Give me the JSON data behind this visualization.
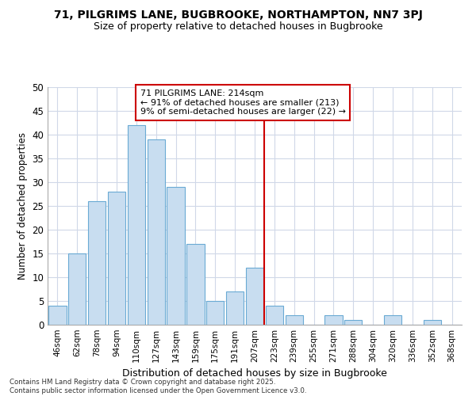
{
  "title1": "71, PILGRIMS LANE, BUGBROOKE, NORTHAMPTON, NN7 3PJ",
  "title2": "Size of property relative to detached houses in Bugbrooke",
  "xlabel": "Distribution of detached houses by size in Bugbrooke",
  "ylabel": "Number of detached properties",
  "categories": [
    "46sqm",
    "62sqm",
    "78sqm",
    "94sqm",
    "110sqm",
    "127sqm",
    "143sqm",
    "159sqm",
    "175sqm",
    "191sqm",
    "207sqm",
    "223sqm",
    "239sqm",
    "255sqm",
    "271sqm",
    "288sqm",
    "304sqm",
    "320sqm",
    "336sqm",
    "352sqm",
    "368sqm"
  ],
  "values": [
    4,
    15,
    26,
    28,
    42,
    39,
    29,
    17,
    5,
    7,
    12,
    4,
    2,
    0,
    2,
    1,
    0,
    2,
    0,
    1,
    0
  ],
  "bar_color": "#c8ddf0",
  "bar_edge_color": "#6aaad4",
  "vline_x_index": 10.5,
  "vline_color": "#cc0000",
  "annotation_text": "71 PILGRIMS LANE: 214sqm\n← 91% of detached houses are smaller (213)\n9% of semi-detached houses are larger (22) →",
  "annotation_box_color": "#ffffff",
  "annotation_edge_color": "#cc0000",
  "ylim": [
    0,
    50
  ],
  "yticks": [
    0,
    5,
    10,
    15,
    20,
    25,
    30,
    35,
    40,
    45,
    50
  ],
  "grid_color": "#d0d8e8",
  "bg_color": "#ffffff",
  "title_fontsize": 10,
  "subtitle_fontsize": 9,
  "footnote": "Contains HM Land Registry data © Crown copyright and database right 2025.\nContains public sector information licensed under the Open Government Licence v3.0."
}
